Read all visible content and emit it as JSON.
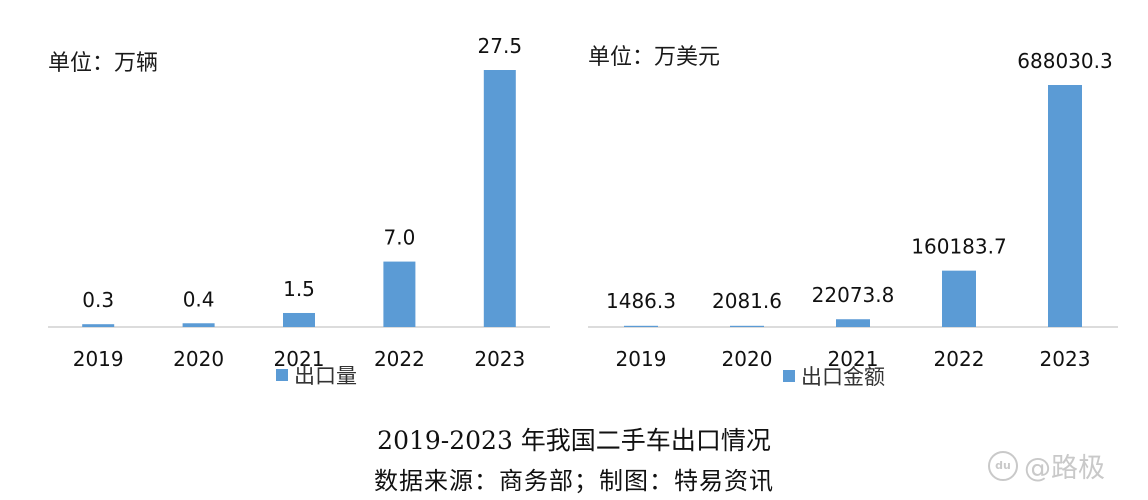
{
  "chart_data": [
    {
      "type": "bar",
      "unit_label": "单位：万辆",
      "categories": [
        "2019",
        "2020",
        "2021",
        "2022",
        "2023"
      ],
      "series": [
        {
          "name": "出口量",
          "values": [
            0.3,
            0.4,
            1.5,
            7.0,
            27.5
          ]
        }
      ],
      "data_labels": [
        "0.3",
        "0.4",
        "1.5",
        "7.0",
        "27.5"
      ],
      "ylim": [
        0,
        27.5
      ],
      "grid": false,
      "legend": "bottom-center",
      "color": "#5b9bd5"
    },
    {
      "type": "bar",
      "unit_label": "单位：万美元",
      "categories": [
        "2019",
        "2020",
        "2021",
        "2022",
        "2023"
      ],
      "series": [
        {
          "name": "出口金额",
          "values": [
            1486.3,
            2081.6,
            22073.8,
            160183.7,
            688030.3
          ]
        }
      ],
      "data_labels": [
        "1486.3",
        "2081.6",
        "22073.8",
        "160183.7",
        "688030.3"
      ],
      "ylim": [
        0,
        688030.3
      ],
      "grid": false,
      "legend": "bottom-center",
      "color": "#5b9bd5"
    }
  ],
  "caption": {
    "title": "2019-2023 年我国二手车出口情况",
    "source": "数据来源：商务部；制图：特易资讯"
  },
  "watermark": {
    "icon": "du",
    "text": "@路极"
  }
}
